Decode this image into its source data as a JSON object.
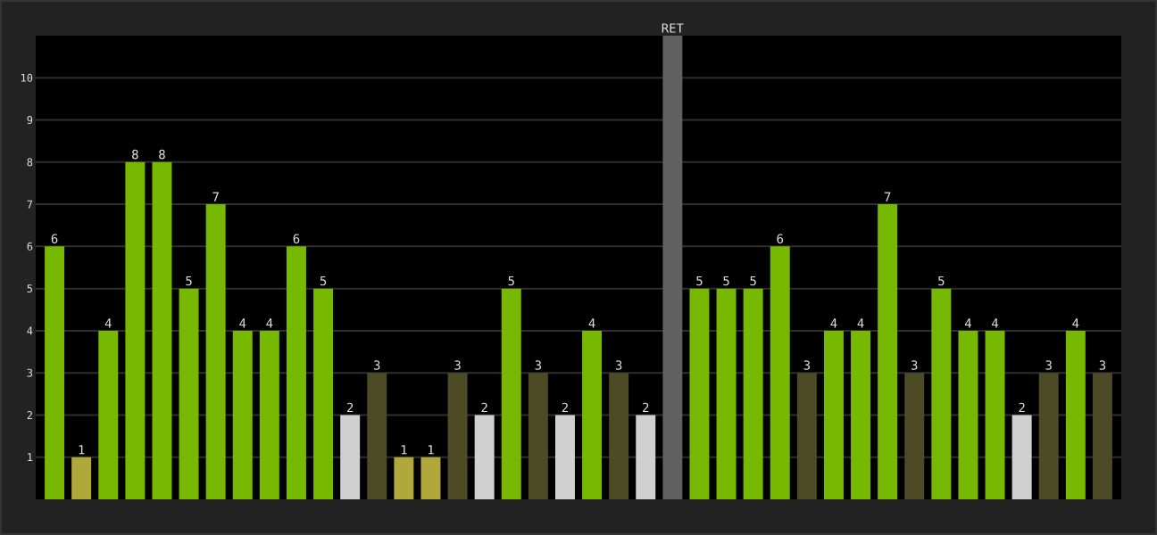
{
  "chart_data": {
    "type": "bar",
    "categories": [
      null,
      null,
      null,
      null,
      null,
      null,
      null,
      null,
      null,
      null,
      null,
      null,
      null,
      null,
      null,
      null,
      null,
      null,
      null,
      null,
      null,
      null,
      null,
      null,
      null,
      null,
      null,
      null,
      null,
      null,
      null,
      null,
      null,
      null,
      null,
      null,
      null,
      null,
      null,
      null
    ],
    "values": [
      6,
      1,
      4,
      8,
      8,
      5,
      7,
      4,
      4,
      6,
      5,
      2,
      3,
      1,
      1,
      3,
      2,
      5,
      3,
      2,
      4,
      3,
      2,
      11,
      5,
      5,
      5,
      6,
      3,
      4,
      4,
      7,
      3,
      5,
      4,
      4,
      2,
      3,
      4,
      3
    ],
    "value_labels": [
      "6",
      "1",
      "4",
      "8",
      "8",
      "5",
      "7",
      "4",
      "4",
      "6",
      "5",
      "2",
      "3",
      "1",
      "1",
      "3",
      "2",
      "5",
      "3",
      "2",
      "4",
      "3",
      "2",
      "RET",
      "5",
      "5",
      "5",
      "6",
      "3",
      "4",
      "4",
      "7",
      "3",
      "5",
      "4",
      "4",
      "2",
      "3",
      "4",
      "3"
    ],
    "colors": [
      "#76b900",
      "#b0a83a",
      "#76b900",
      "#76b900",
      "#76b900",
      "#76b900",
      "#76b900",
      "#76b900",
      "#76b900",
      "#76b900",
      "#76b900",
      "#d0d0d0",
      "#4d4a26",
      "#b0a83a",
      "#b0a83a",
      "#4d4a26",
      "#d0d0d0",
      "#76b900",
      "#4d4a26",
      "#d0d0d0",
      "#76b900",
      "#4d4a26",
      "#d0d0d0",
      "#606060",
      "#76b900",
      "#76b900",
      "#76b900",
      "#76b900",
      "#4d4a26",
      "#76b900",
      "#76b900",
      "#76b900",
      "#4d4a26",
      "#76b900",
      "#76b900",
      "#76b900",
      "#d0d0d0",
      "#4d4a26",
      "#76b900",
      "#4d4a26"
    ],
    "ylim": [
      0,
      11
    ],
    "yticks": [
      1,
      2,
      3,
      4,
      5,
      6,
      7,
      8,
      9,
      10
    ],
    "grid": "y"
  }
}
